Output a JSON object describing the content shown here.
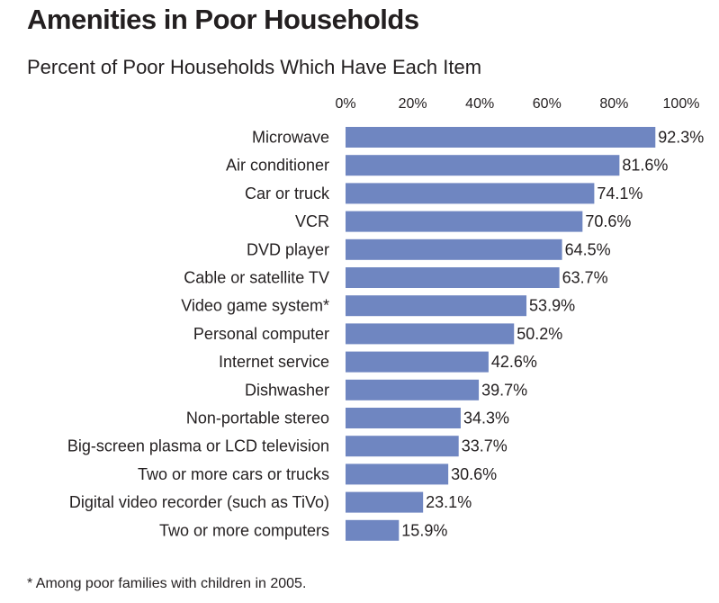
{
  "title": "Amenities in Poor Households",
  "subtitle": "Percent of Poor Households Which Have Each Item",
  "footnote": "* Among poor families with children in 2005.",
  "colors": {
    "bar": "#6f86c1",
    "text": "#231f20"
  },
  "chart_data": {
    "type": "bar",
    "orientation": "horizontal",
    "title": "Amenities in Poor Households",
    "subtitle": "Percent of Poor Households Which Have Each Item",
    "xlim": [
      0,
      100
    ],
    "x_ticks": [
      "0%",
      "20%",
      "40%",
      "60%",
      "80%",
      "100%"
    ],
    "x_tick_values": [
      0,
      20,
      40,
      60,
      80,
      100
    ],
    "grid": false,
    "categories": [
      "Microwave",
      "Air conditioner",
      "Car or truck",
      "VCR",
      "DVD player",
      "Cable or satellite TV",
      "Video game system*",
      "Personal computer",
      "Internet service",
      "Dishwasher",
      "Non-portable stereo",
      "Big-screen plasma or LCD television",
      "Two or more cars or trucks",
      "Digital video recorder (such as TiVo)",
      "Two or more computers"
    ],
    "values": [
      92.3,
      81.6,
      74.1,
      70.6,
      64.5,
      63.7,
      53.9,
      50.2,
      42.6,
      39.7,
      34.3,
      33.7,
      30.6,
      23.1,
      15.9
    ],
    "value_labels": [
      "92.3%",
      "81.6%",
      "74.1%",
      "70.6%",
      "64.5%",
      "63.7%",
      "53.9%",
      "50.2%",
      "42.6%",
      "39.7%",
      "34.3%",
      "33.7%",
      "30.6%",
      "23.1%",
      "15.9%"
    ]
  }
}
